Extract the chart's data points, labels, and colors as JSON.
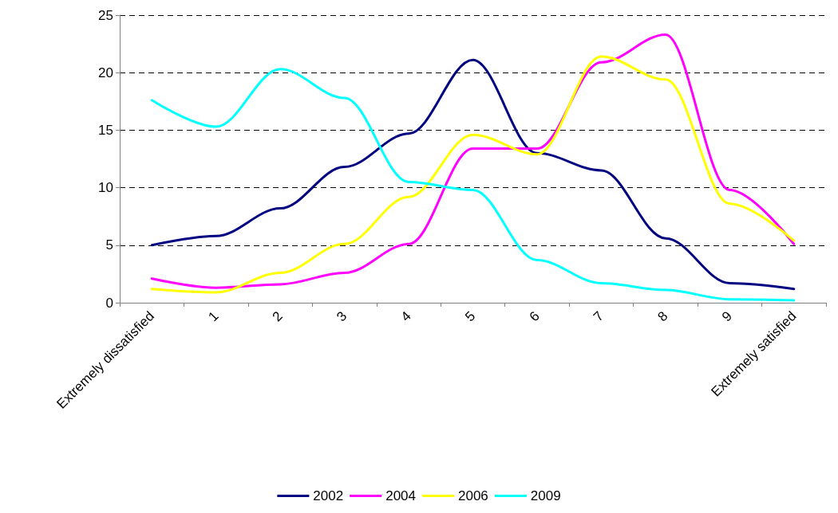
{
  "chart_data": {
    "type": "line",
    "categories": [
      "Extremely dissatisfied",
      "1",
      "2",
      "3",
      "4",
      "5",
      "6",
      "7",
      "8",
      "9",
      "Extremely satisfied"
    ],
    "series": [
      {
        "name": "2002",
        "color": "#000080",
        "values": [
          5.0,
          5.8,
          8.2,
          11.8,
          14.7,
          21.1,
          13.0,
          11.5,
          5.6,
          1.7,
          1.2
        ]
      },
      {
        "name": "2004",
        "color": "#ff00ff",
        "values": [
          2.1,
          1.3,
          1.6,
          2.6,
          5.1,
          13.4,
          13.4,
          20.9,
          23.3,
          9.8,
          5.1
        ]
      },
      {
        "name": "2006",
        "color": "#ffff00",
        "values": [
          1.2,
          0.9,
          2.6,
          5.1,
          9.2,
          14.6,
          12.9,
          21.4,
          19.4,
          8.6,
          5.4
        ]
      },
      {
        "name": "2009",
        "color": "#00ffff",
        "values": [
          17.6,
          15.3,
          20.3,
          17.8,
          10.5,
          9.8,
          3.7,
          1.7,
          1.1,
          0.3,
          0.2
        ]
      }
    ],
    "ylim": [
      0,
      25
    ],
    "yticks": [
      0,
      5,
      10,
      15,
      20,
      25
    ],
    "grid": "y",
    "legend": "bottom",
    "marker": "none",
    "line_style": "solid"
  }
}
